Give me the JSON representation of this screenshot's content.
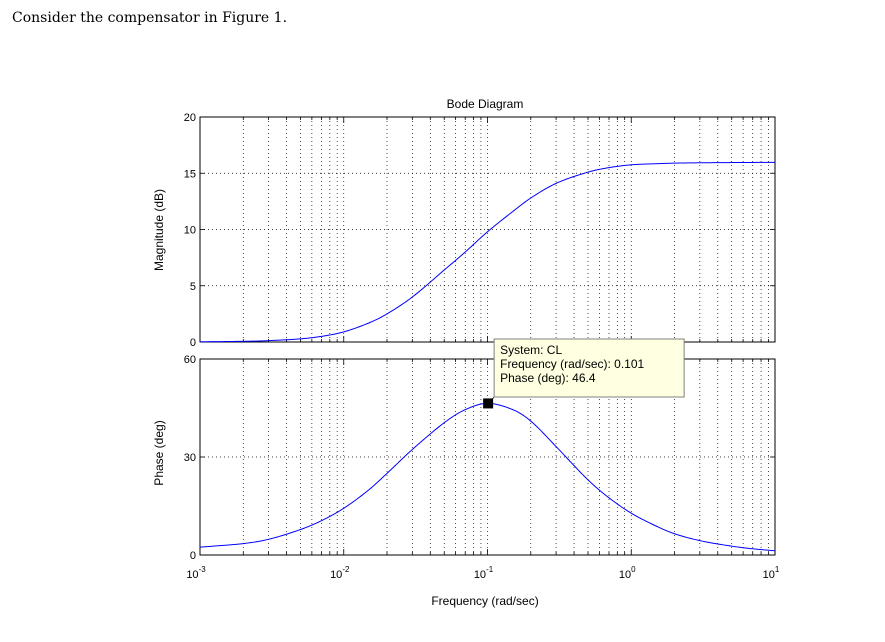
{
  "intro_text": "Consider the compensator in Figure 1.",
  "chart_data": {
    "type": "line",
    "title": "Bode Diagram",
    "xlabel": "Frequency (rad/sec)",
    "xscale": "log",
    "xlim": [
      0.001,
      10
    ],
    "x_ticks": [
      {
        "base": "10",
        "exp": "-3"
      },
      {
        "base": "10",
        "exp": "-2"
      },
      {
        "base": "10",
        "exp": "-1"
      },
      {
        "base": "10",
        "exp": "0"
      },
      {
        "base": "10",
        "exp": "1"
      }
    ],
    "grid": true,
    "line_color": "#0000ff",
    "panels": [
      {
        "name": "magnitude",
        "ylabel": "Magnitude (dB)",
        "ylim": [
          0,
          20
        ],
        "yticks": [
          "0",
          "5",
          "10",
          "15",
          "20"
        ],
        "x": [
          0.001,
          0.002,
          0.003,
          0.005,
          0.007,
          0.01,
          0.015,
          0.02,
          0.03,
          0.05,
          0.07,
          0.1,
          0.15,
          0.2,
          0.3,
          0.5,
          0.7,
          1,
          1.5,
          2,
          3,
          5,
          7,
          10
        ],
        "y": [
          0.02,
          0.06,
          0.12,
          0.28,
          0.5,
          0.9,
          1.7,
          2.5,
          4.0,
          6.4,
          8.0,
          9.8,
          11.6,
          12.8,
          14.1,
          15.1,
          15.5,
          15.75,
          15.85,
          15.9,
          15.93,
          15.95,
          15.96,
          15.97
        ]
      },
      {
        "name": "phase",
        "ylabel": "Phase (deg)",
        "ylim": [
          0,
          60
        ],
        "yticks": [
          "0",
          "30",
          "60"
        ],
        "x": [
          0.001,
          0.002,
          0.003,
          0.005,
          0.007,
          0.01,
          0.015,
          0.02,
          0.03,
          0.05,
          0.07,
          0.1,
          0.15,
          0.2,
          0.3,
          0.5,
          0.7,
          1,
          1.5,
          2,
          3,
          5,
          7,
          10
        ],
        "y": [
          2.4,
          3.5,
          4.8,
          7.8,
          10.5,
          14.3,
          20.0,
          25.0,
          32.3,
          40.5,
          44.5,
          46.4,
          44.5,
          41.0,
          33.2,
          23.0,
          17.5,
          12.8,
          8.8,
          6.5,
          4.4,
          2.7,
          1.9,
          1.3
        ]
      }
    ],
    "datatip": {
      "panel": "phase",
      "x": 0.101,
      "y": 46.4,
      "lines": [
        "System: CL",
        "Frequency (rad/sec): 0.101",
        "Phase (deg): 46.4"
      ]
    }
  }
}
